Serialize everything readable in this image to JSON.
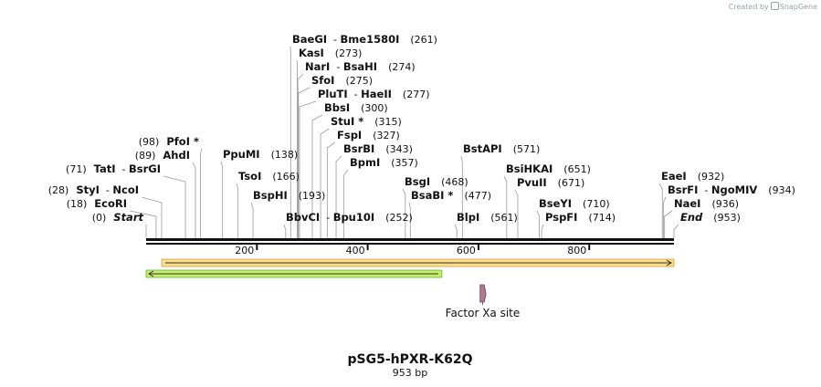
{
  "credit": {
    "text": "Created by",
    "brand": "SnapGene"
  },
  "plasmid": {
    "name": "pSG5-hPXR-K62Q",
    "length_label": "953 bp",
    "length": 953
  },
  "ruler": {
    "ticks": [
      200,
      400,
      600,
      800
    ]
  },
  "enzymes": [
    {
      "names": [
        "BaeGI",
        "Bme1580I"
      ],
      "pos_label": "(261)",
      "pos": 261,
      "side": "right"
    },
    {
      "names": [
        "KasI"
      ],
      "pos_label": "(273)",
      "pos": 273,
      "side": "right"
    },
    {
      "names": [
        "NarI",
        "BsaHI"
      ],
      "pos_label": "(274)",
      "pos": 274,
      "side": "right"
    },
    {
      "names": [
        "SfoI"
      ],
      "pos_label": "(275)",
      "pos": 275,
      "side": "right"
    },
    {
      "names": [
        "PluTI",
        "HaeII"
      ],
      "pos_label": "(277)",
      "pos": 277,
      "side": "right"
    },
    {
      "names": [
        "BbsI"
      ],
      "pos_label": "(300)",
      "pos": 300,
      "side": "right"
    },
    {
      "names": [
        "StuI *"
      ],
      "pos_label": "(315)",
      "pos": 315,
      "side": "right"
    },
    {
      "names": [
        "FspI"
      ],
      "pos_label": "(327)",
      "pos": 327,
      "side": "right"
    },
    {
      "names": [
        "BsrBI"
      ],
      "pos_label": "(343)",
      "pos": 343,
      "side": "right"
    },
    {
      "names": [
        "BpmI"
      ],
      "pos_label": "(357)",
      "pos": 357,
      "side": "right"
    },
    {
      "names": [
        "BbvCI",
        "Bpu10I"
      ],
      "pos_label": "(252)",
      "pos": 252,
      "side": "right"
    },
    {
      "names": [
        "BspHI"
      ],
      "pos_label": "(193)",
      "pos": 193,
      "side": "right"
    },
    {
      "names": [
        "TsoI"
      ],
      "pos_label": "(166)",
      "pos": 166,
      "side": "right"
    },
    {
      "names": [
        "PpuMI"
      ],
      "pos_label": "(138)",
      "pos": 138,
      "side": "right"
    },
    {
      "names": [
        "PfoI *"
      ],
      "pos_label": "(98)",
      "pos": 98,
      "side": "left"
    },
    {
      "names": [
        "AhdI"
      ],
      "pos_label": "(89)",
      "pos": 89,
      "side": "left"
    },
    {
      "names": [
        "TatI",
        "BsrGI"
      ],
      "pos_label": "(71)",
      "pos": 71,
      "side": "left"
    },
    {
      "names": [
        "StyI",
        "NcoI"
      ],
      "pos_label": "(28)",
      "pos": 28,
      "side": "left"
    },
    {
      "names": [
        "EcoRI"
      ],
      "pos_label": "(18)",
      "pos": 18,
      "side": "left"
    },
    {
      "names": [
        "Start"
      ],
      "pos_label": "(0)",
      "pos": 0,
      "side": "left",
      "italic": true
    },
    {
      "names": [
        "BsgI"
      ],
      "pos_label": "(468)",
      "pos": 468,
      "side": "right"
    },
    {
      "names": [
        "BsaBI *"
      ],
      "pos_label": "(477)",
      "pos": 477,
      "side": "right"
    },
    {
      "names": [
        "BstAPI"
      ],
      "pos_label": "(571)",
      "pos": 571,
      "side": "right"
    },
    {
      "names": [
        "BlpI"
      ],
      "pos_label": "(561)",
      "pos": 561,
      "side": "right"
    },
    {
      "names": [
        "BsiHKAI"
      ],
      "pos_label": "(651)",
      "pos": 651,
      "side": "right"
    },
    {
      "names": [
        "PvuII"
      ],
      "pos_label": "(671)",
      "pos": 671,
      "side": "right"
    },
    {
      "names": [
        "BseYI"
      ],
      "pos_label": "(710)",
      "pos": 710,
      "side": "right"
    },
    {
      "names": [
        "PspFI"
      ],
      "pos_label": "(714)",
      "pos": 714,
      "side": "right"
    },
    {
      "names": [
        "EaeI"
      ],
      "pos_label": "(932)",
      "pos": 932,
      "side": "right"
    },
    {
      "names": [
        "BsrFI",
        "NgoMIV"
      ],
      "pos_label": "(934)",
      "pos": 934,
      "side": "right"
    },
    {
      "names": [
        "NaeI"
      ],
      "pos_label": "(936)",
      "pos": 936,
      "side": "right"
    },
    {
      "names": [
        "End"
      ],
      "pos_label": "(953)",
      "pos": 953,
      "side": "right",
      "italic": true
    }
  ],
  "features": [
    {
      "name": "orange-orf",
      "start": 28,
      "end": 953,
      "direction": "forward",
      "fill": "#f7e08a",
      "stroke": "#e89a3c"
    },
    {
      "name": "green-orf",
      "start": 0,
      "end": 534,
      "direction": "reverse",
      "fill": "#c6f06a",
      "stroke": "#5fb33a"
    },
    {
      "name": "Factor Xa site",
      "label": "Factor Xa site",
      "start": 603,
      "end": 612,
      "fill": "#b07a93",
      "stroke": "#6b3f56"
    }
  ]
}
